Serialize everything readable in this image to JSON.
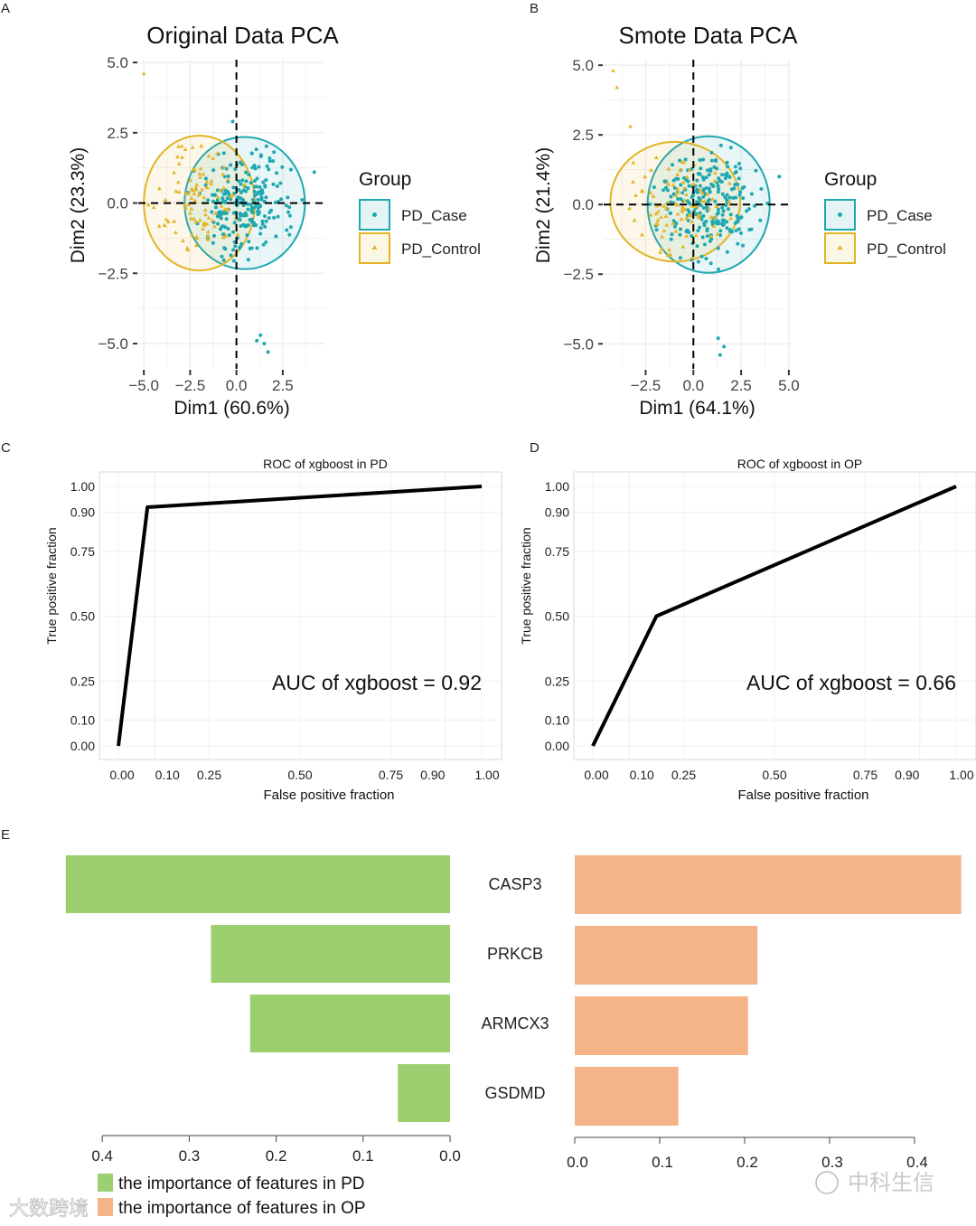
{
  "colors": {
    "case": "#1fa8b0",
    "control": "#e3b425",
    "pd_bar": "#9ccf70",
    "op_bar": "#f5b487"
  },
  "watermarks": [
    "大数跨境",
    "中科生信"
  ],
  "chart_data": [
    {
      "panel": "A",
      "type": "scatter",
      "title": "Original Data PCA",
      "xlabel": "Dim1 (60.6%)",
      "ylabel": "Dim2 (23.3%)",
      "xticks": [
        "−5.0",
        "−2.5",
        "0.0",
        "2.5"
      ],
      "xtick_values": [
        -5,
        -2.5,
        0,
        2.5
      ],
      "yticks": [
        "5.0",
        "2.5",
        "0.0",
        "−2.5",
        "−5.0"
      ],
      "ytick_values": [
        5,
        2.5,
        0,
        -2.5,
        -5
      ],
      "xlim": [
        -5.3,
        4.8
      ],
      "ylim": [
        -5.9,
        5.1
      ],
      "legend": {
        "title": "Group",
        "entries": [
          "PD_Case",
          "PD_Control"
        ],
        "placement": "right"
      },
      "ellipses": [
        {
          "group": "PD_Case",
          "cx": 0.45,
          "cy": 0,
          "rx": 3.25,
          "ry": 2.35
        },
        {
          "group": "PD_Control",
          "cx": -2.0,
          "cy": 0,
          "rx": 3.0,
          "ry": 2.4
        }
      ],
      "outliers": [
        {
          "group": "PD_Control",
          "x": -5.0,
          "y": 4.6
        },
        {
          "group": "PD_Case",
          "x": 1.3,
          "y": -4.7
        },
        {
          "group": "PD_Case",
          "x": 1.5,
          "y": -5.0
        },
        {
          "group": "PD_Case",
          "x": 1.1,
          "y": -4.9
        },
        {
          "group": "PD_Case",
          "x": 1.7,
          "y": -5.3
        },
        {
          "group": "PD_Case",
          "x": 4.2,
          "y": 1.1
        },
        {
          "group": "PD_Case",
          "x": -0.2,
          "y": 2.9
        }
      ]
    },
    {
      "panel": "B",
      "type": "scatter",
      "title": "Smote Data PCA",
      "xlabel": "Dim1 (64.1%)",
      "ylabel": "Dim2 (21.4%)",
      "xticks": [
        "−2.5",
        "0.0",
        "2.5",
        "5.0"
      ],
      "xtick_values": [
        -2.5,
        0,
        2.5,
        5
      ],
      "yticks": [
        "5.0",
        "2.5",
        "0.0",
        "−2.5",
        "−5.0"
      ],
      "ytick_values": [
        5,
        2.5,
        0,
        -2.5,
        -5
      ],
      "xlim": [
        -4.7,
        5.1
      ],
      "ylim": [
        -5.9,
        5.2
      ],
      "legend": {
        "title": "Group",
        "entries": [
          "PD_Case",
          "PD_Control"
        ],
        "placement": "right"
      },
      "ellipses": [
        {
          "group": "PD_Case",
          "cx": 0.8,
          "cy": 0,
          "rx": 3.2,
          "ry": 2.45
        },
        {
          "group": "PD_Control",
          "cx": -0.95,
          "cy": 0.1,
          "rx": 3.4,
          "ry": 2.15
        }
      ],
      "outliers": [
        {
          "group": "PD_Control",
          "x": -4.2,
          "y": 4.8
        },
        {
          "group": "PD_Control",
          "x": -4.0,
          "y": 4.2
        },
        {
          "group": "PD_Control",
          "x": -3.3,
          "y": 2.8
        },
        {
          "group": "PD_Case",
          "x": 1.3,
          "y": -4.8
        },
        {
          "group": "PD_Case",
          "x": 1.6,
          "y": -5.1
        },
        {
          "group": "PD_Case",
          "x": 1.4,
          "y": -5.4
        },
        {
          "group": "PD_Case",
          "x": 4.5,
          "y": 1.0
        }
      ]
    },
    {
      "panel": "C",
      "type": "line",
      "title": "ROC of xgboost in PD",
      "xlabel": "False positive fraction",
      "ylabel": "True positive fraction",
      "xticks": [
        "0.00",
        "0.10",
        "0.25",
        "0.50",
        "0.75",
        "0.90",
        "1.00"
      ],
      "xtick_values": [
        0,
        0.1,
        0.25,
        0.5,
        0.75,
        0.9,
        1
      ],
      "yticks": [
        "0.00",
        "0.10",
        "0.25",
        "0.50",
        "0.75",
        "0.90",
        "1.00"
      ],
      "ytick_values": [
        0,
        0.1,
        0.25,
        0.5,
        0.75,
        0.9,
        1
      ],
      "series": [
        {
          "name": "xgboost",
          "x": [
            0,
            0.08,
            1
          ],
          "y": [
            0,
            0.92,
            1
          ]
        }
      ],
      "annotation": "AUC of xgboost = 0.92",
      "auc": 0.92
    },
    {
      "panel": "D",
      "type": "line",
      "title": "ROC of xgboost in OP",
      "xlabel": "False positive fraction",
      "ylabel": "True positive fraction",
      "xticks": [
        "0.00",
        "0.10",
        "0.25",
        "0.50",
        "0.75",
        "0.90",
        "1.00"
      ],
      "xtick_values": [
        0,
        0.1,
        0.25,
        0.5,
        0.75,
        0.9,
        1
      ],
      "yticks": [
        "0.00",
        "0.10",
        "0.25",
        "0.50",
        "0.75",
        "0.90",
        "1.00"
      ],
      "ytick_values": [
        0,
        0.1,
        0.25,
        0.5,
        0.75,
        0.9,
        1
      ],
      "series": [
        {
          "name": "xgboost",
          "x": [
            0,
            0.175,
            1
          ],
          "y": [
            0,
            0.5,
            1
          ]
        }
      ],
      "annotation": "AUC of xgboost = 0.66",
      "auc": 0.66
    },
    {
      "panel": "E",
      "type": "bar",
      "categories": [
        "CASP3",
        "PRKCB",
        "ARMCX3",
        "GSDMD"
      ],
      "series": [
        {
          "name": "the importance of features in PD",
          "values": [
            0.442,
            0.275,
            0.23,
            0.06
          ]
        },
        {
          "name": "the importance of features in OP",
          "values": [
            0.455,
            0.215,
            0.204,
            0.122
          ]
        }
      ],
      "left_ticks": [
        "0.4",
        "0.3",
        "0.2",
        "0.1",
        "0.0"
      ],
      "left_tick_values": [
        0.4,
        0.3,
        0.2,
        0.1,
        0
      ],
      "right_ticks": [
        "0.0",
        "0.1",
        "0.2",
        "0.3",
        "0.4"
      ],
      "right_tick_values": [
        0,
        0.1,
        0.2,
        0.3,
        0.4
      ],
      "legend_placement": "bottom-left"
    }
  ],
  "panel_labels": [
    "A",
    "B",
    "C",
    "D",
    "E"
  ]
}
